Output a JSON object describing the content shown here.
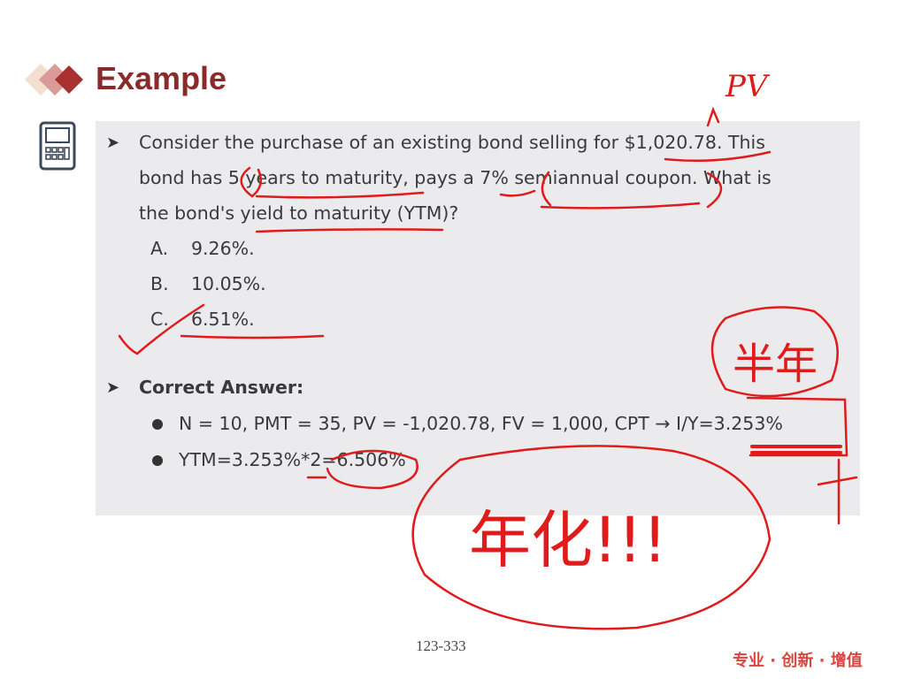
{
  "slide": {
    "title": "Example",
    "question": [
      "Consider the purchase of an existing bond selling for $1,020.78. This",
      "bond has 5 years to maturity, pays a 7% semiannual coupon. What is",
      "the bond's yield to maturity (YTM)?"
    ],
    "options": [
      {
        "letter": "A.",
        "text": "9.26%."
      },
      {
        "letter": "B.",
        "text": "10.05%."
      },
      {
        "letter": "C.",
        "text": "6.51%."
      }
    ],
    "answer_heading": "Correct Answer:",
    "answer_lines": [
      "N = 10, PMT = 35, PV = -1,020.78, FV = 1,000, CPT → I/Y=3.253%",
      "YTM=3.253%*2=6.506%"
    ],
    "page_number": "123-333",
    "brand_slogan": "专业 · 创新 · 增值"
  },
  "annotations": {
    "pv_note": "PV",
    "semiannual_note": "半年",
    "annualize_note": "年化!!!",
    "ink_color": "#e01b1b"
  },
  "colors": {
    "title": "#8b2a2a",
    "box_bg": "#ebebee",
    "brand": "#d9453f"
  }
}
